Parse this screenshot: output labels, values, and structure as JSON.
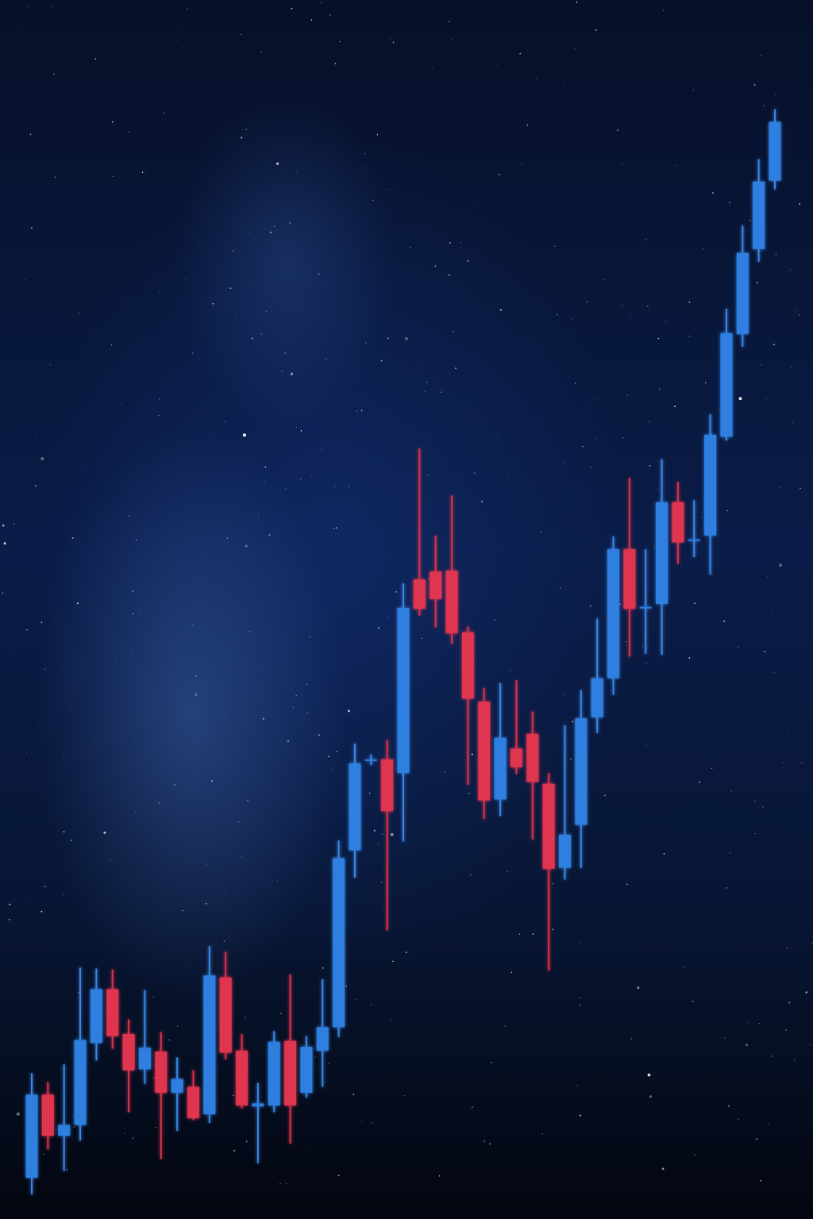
{
  "chart_data": {
    "type": "candlestick",
    "title": "",
    "xlabel": "",
    "ylabel": "",
    "ylim": [
      0,
      100
    ],
    "axes_visible": false,
    "grid": false,
    "colors": {
      "up": "#2e7fe0",
      "down": "#e0344f",
      "background": "#061028"
    },
    "candles": [
      {
        "x": 1,
        "open": 1.7,
        "close": 10.2,
        "high": 12.4,
        "low": 0.0
      },
      {
        "x": 2,
        "open": 10.2,
        "close": 6.0,
        "high": 11.5,
        "low": 4.6
      },
      {
        "x": 3,
        "open": 6.0,
        "close": 7.1,
        "high": 13.3,
        "low": 2.4
      },
      {
        "x": 4,
        "open": 7.1,
        "close": 15.8,
        "high": 23.2,
        "low": 5.5
      },
      {
        "x": 5,
        "open": 15.5,
        "close": 21.0,
        "high": 23.1,
        "low": 13.7
      },
      {
        "x": 6,
        "open": 21.0,
        "close": 16.2,
        "high": 23.0,
        "low": 14.9
      },
      {
        "x": 7,
        "open": 16.4,
        "close": 12.7,
        "high": 17.9,
        "low": 8.4
      },
      {
        "x": 8,
        "open": 12.8,
        "close": 15.0,
        "high": 20.9,
        "low": 11.3
      },
      {
        "x": 9,
        "open": 14.6,
        "close": 10.4,
        "high": 16.6,
        "low": 3.6
      },
      {
        "x": 10,
        "open": 10.4,
        "close": 11.8,
        "high": 14.0,
        "low": 6.5
      },
      {
        "x": 11,
        "open": 11.0,
        "close": 7.8,
        "high": 12.7,
        "low": 7.6
      },
      {
        "x": 12,
        "open": 8.2,
        "close": 22.4,
        "high": 25.4,
        "low": 7.3
      },
      {
        "x": 13,
        "open": 22.2,
        "close": 14.5,
        "high": 24.8,
        "low": 13.8
      },
      {
        "x": 14,
        "open": 14.7,
        "close": 9.1,
        "high": 16.4,
        "low": 8.8
      },
      {
        "x": 15,
        "open": 9.0,
        "close": 9.3,
        "high": 11.4,
        "low": 3.2
      },
      {
        "x": 16,
        "open": 9.1,
        "close": 15.6,
        "high": 16.7,
        "low": 8.4
      },
      {
        "x": 17,
        "open": 15.7,
        "close": 9.1,
        "high": 22.5,
        "low": 5.2
      },
      {
        "x": 18,
        "open": 10.4,
        "close": 15.1,
        "high": 16.2,
        "low": 9.9
      },
      {
        "x": 19,
        "open": 14.7,
        "close": 17.1,
        "high": 22.0,
        "low": 11.0
      },
      {
        "x": 20,
        "open": 17.1,
        "close": 34.4,
        "high": 36.2,
        "low": 16.1
      },
      {
        "x": 21,
        "open": 35.2,
        "close": 44.1,
        "high": 46.1,
        "low": 32.4
      },
      {
        "x": 22,
        "open": 44.5,
        "close": 44.5,
        "high": 45.0,
        "low": 43.9
      },
      {
        "x": 23,
        "open": 44.5,
        "close": 39.2,
        "high": 46.5,
        "low": 27.0
      },
      {
        "x": 24,
        "open": 43.1,
        "close": 60.0,
        "high": 62.5,
        "low": 36.1
      },
      {
        "x": 25,
        "open": 62.9,
        "close": 59.9,
        "high": 76.3,
        "low": 59.2
      },
      {
        "x": 26,
        "open": 63.7,
        "close": 60.9,
        "high": 67.4,
        "low": 58.0
      },
      {
        "x": 27,
        "open": 63.8,
        "close": 57.4,
        "high": 71.5,
        "low": 56.3
      },
      {
        "x": 28,
        "open": 57.5,
        "close": 50.7,
        "high": 58.1,
        "low": 41.9
      },
      {
        "x": 29,
        "open": 50.4,
        "close": 40.3,
        "high": 51.8,
        "low": 38.4
      },
      {
        "x": 30,
        "open": 40.4,
        "close": 46.7,
        "high": 52.3,
        "low": 38.7
      },
      {
        "x": 31,
        "open": 45.6,
        "close": 43.7,
        "high": 52.6,
        "low": 43.0
      },
      {
        "x": 32,
        "open": 47.1,
        "close": 42.2,
        "high": 49.4,
        "low": 36.3
      },
      {
        "x": 33,
        "open": 42.0,
        "close": 33.3,
        "high": 43.1,
        "low": 22.9
      },
      {
        "x": 34,
        "open": 33.4,
        "close": 36.8,
        "high": 48.0,
        "low": 32.2
      },
      {
        "x": 35,
        "open": 37.8,
        "close": 48.7,
        "high": 51.6,
        "low": 33.4
      },
      {
        "x": 36,
        "open": 48.8,
        "close": 52.8,
        "high": 58.9,
        "low": 47.2
      },
      {
        "x": 37,
        "open": 52.8,
        "close": 66.0,
        "high": 67.3,
        "low": 51.1
      },
      {
        "x": 38,
        "open": 66.0,
        "close": 59.9,
        "high": 73.3,
        "low": 55.0
      },
      {
        "x": 39,
        "open": 60.0,
        "close": 60.1,
        "high": 66.0,
        "low": 55.3
      },
      {
        "x": 40,
        "open": 60.4,
        "close": 70.8,
        "high": 75.2,
        "low": 55.2
      },
      {
        "x": 41,
        "open": 70.8,
        "close": 66.7,
        "high": 72.9,
        "low": 64.5
      },
      {
        "x": 42,
        "open": 66.9,
        "close": 67.0,
        "high": 71.0,
        "low": 65.2
      },
      {
        "x": 43,
        "open": 67.4,
        "close": 77.7,
        "high": 79.8,
        "low": 63.4
      },
      {
        "x": 44,
        "open": 77.5,
        "close": 88.1,
        "high": 90.6,
        "low": 77.1
      },
      {
        "x": 45,
        "open": 88.0,
        "close": 96.3,
        "high": 99.1,
        "low": 86.7
      },
      {
        "x": 46,
        "open": 96.7,
        "close": 103.6,
        "high": 105.9,
        "low": 95.4
      },
      {
        "x": 47,
        "open": 103.7,
        "close": 109.7,
        "high": 111.0,
        "low": 102.8
      }
    ]
  }
}
